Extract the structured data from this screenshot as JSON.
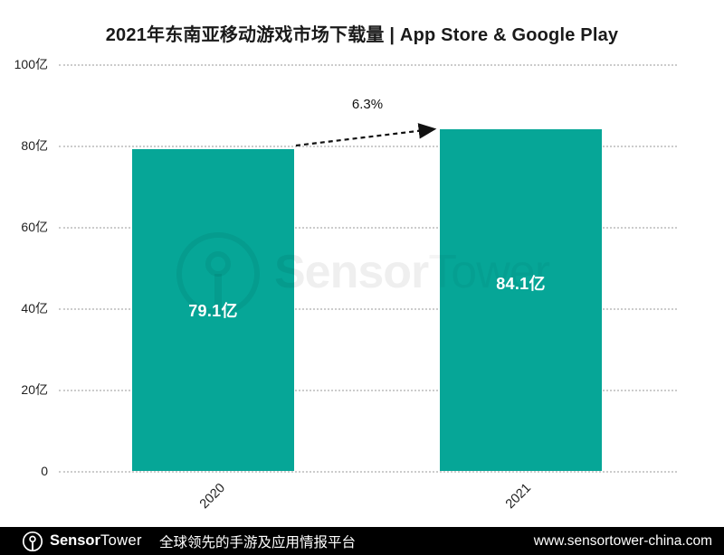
{
  "title": "2021年东南亚移动游戏市场下载量 | App Store & Google Play",
  "chart_data": {
    "type": "bar",
    "title": "2021年东南亚移动游戏市场下载量 | App Store & Google Play",
    "categories": [
      "2020",
      "2021"
    ],
    "values": [
      79.1,
      84.1
    ],
    "value_labels": [
      "79.1亿",
      "84.1亿"
    ],
    "unit": "亿",
    "growth_annotation": "6.3%",
    "ylim": [
      0,
      100
    ],
    "ytick_labels": [
      "100亿",
      "80亿",
      "60亿",
      "40亿",
      "20亿",
      "0"
    ],
    "ytick_values": [
      100,
      80,
      60,
      40,
      20,
      0
    ],
    "grid": "dotted horizontal",
    "legend": "none",
    "bar_color": "#06A697",
    "grid_color": "#cccccc"
  },
  "watermark": {
    "brand_bold": "Sensor",
    "brand_light": "Tower"
  },
  "footer": {
    "bg_color": "#000000",
    "brand_bold": "Sensor",
    "brand_light": "Tower",
    "tagline": "全球领先的手游及应用情报平台",
    "website": "www.sensortower-china.com"
  }
}
